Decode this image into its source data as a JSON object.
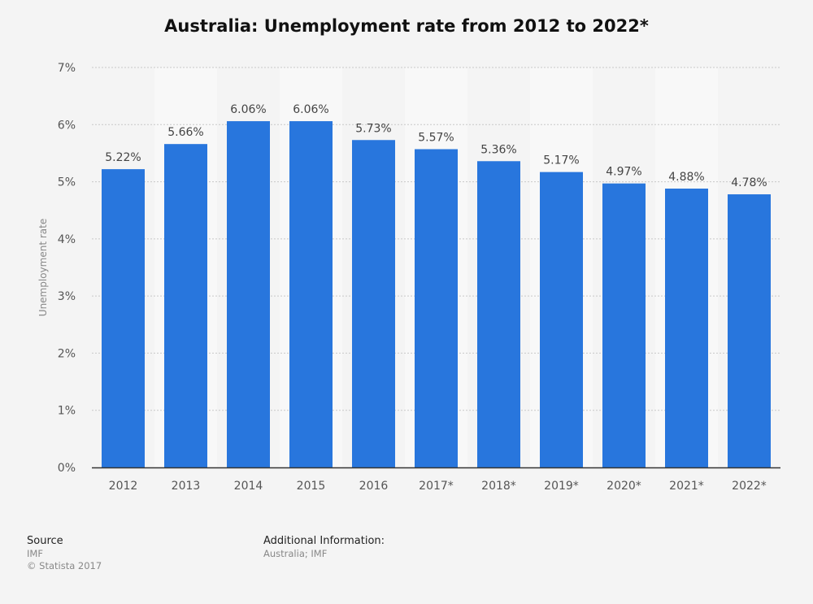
{
  "chart_data": {
    "type": "bar",
    "title": "Australia: Unemployment rate from 2012 to 2022*",
    "ylabel": "Unemployment rate",
    "xlabel": "",
    "categories": [
      "2012",
      "2013",
      "2014",
      "2015",
      "2016",
      "2017*",
      "2018*",
      "2019*",
      "2020*",
      "2021*",
      "2022*"
    ],
    "values": [
      5.22,
      5.66,
      6.06,
      6.06,
      5.73,
      5.57,
      5.36,
      5.17,
      4.97,
      4.88,
      4.78
    ],
    "value_labels": [
      "5.22%",
      "5.66%",
      "6.06%",
      "6.06%",
      "5.73%",
      "5.57%",
      "5.36%",
      "5.17%",
      "4.97%",
      "4.88%",
      "4.78%"
    ],
    "ylim": [
      0,
      7
    ],
    "yticks": [
      0,
      1,
      2,
      3,
      4,
      5,
      6,
      7
    ],
    "ytick_labels": [
      "0%",
      "1%",
      "2%",
      "3%",
      "4%",
      "5%",
      "6%",
      "7%"
    ],
    "grid": true,
    "legend": "none",
    "bar_color": "#2876dd",
    "band_color": "#f8f8f8"
  },
  "footer": {
    "source_heading": "Source",
    "source_name": "IMF",
    "copyright": "© Statista 2017",
    "additional_heading": "Additional Information:",
    "additional_text": "Australia; IMF"
  }
}
